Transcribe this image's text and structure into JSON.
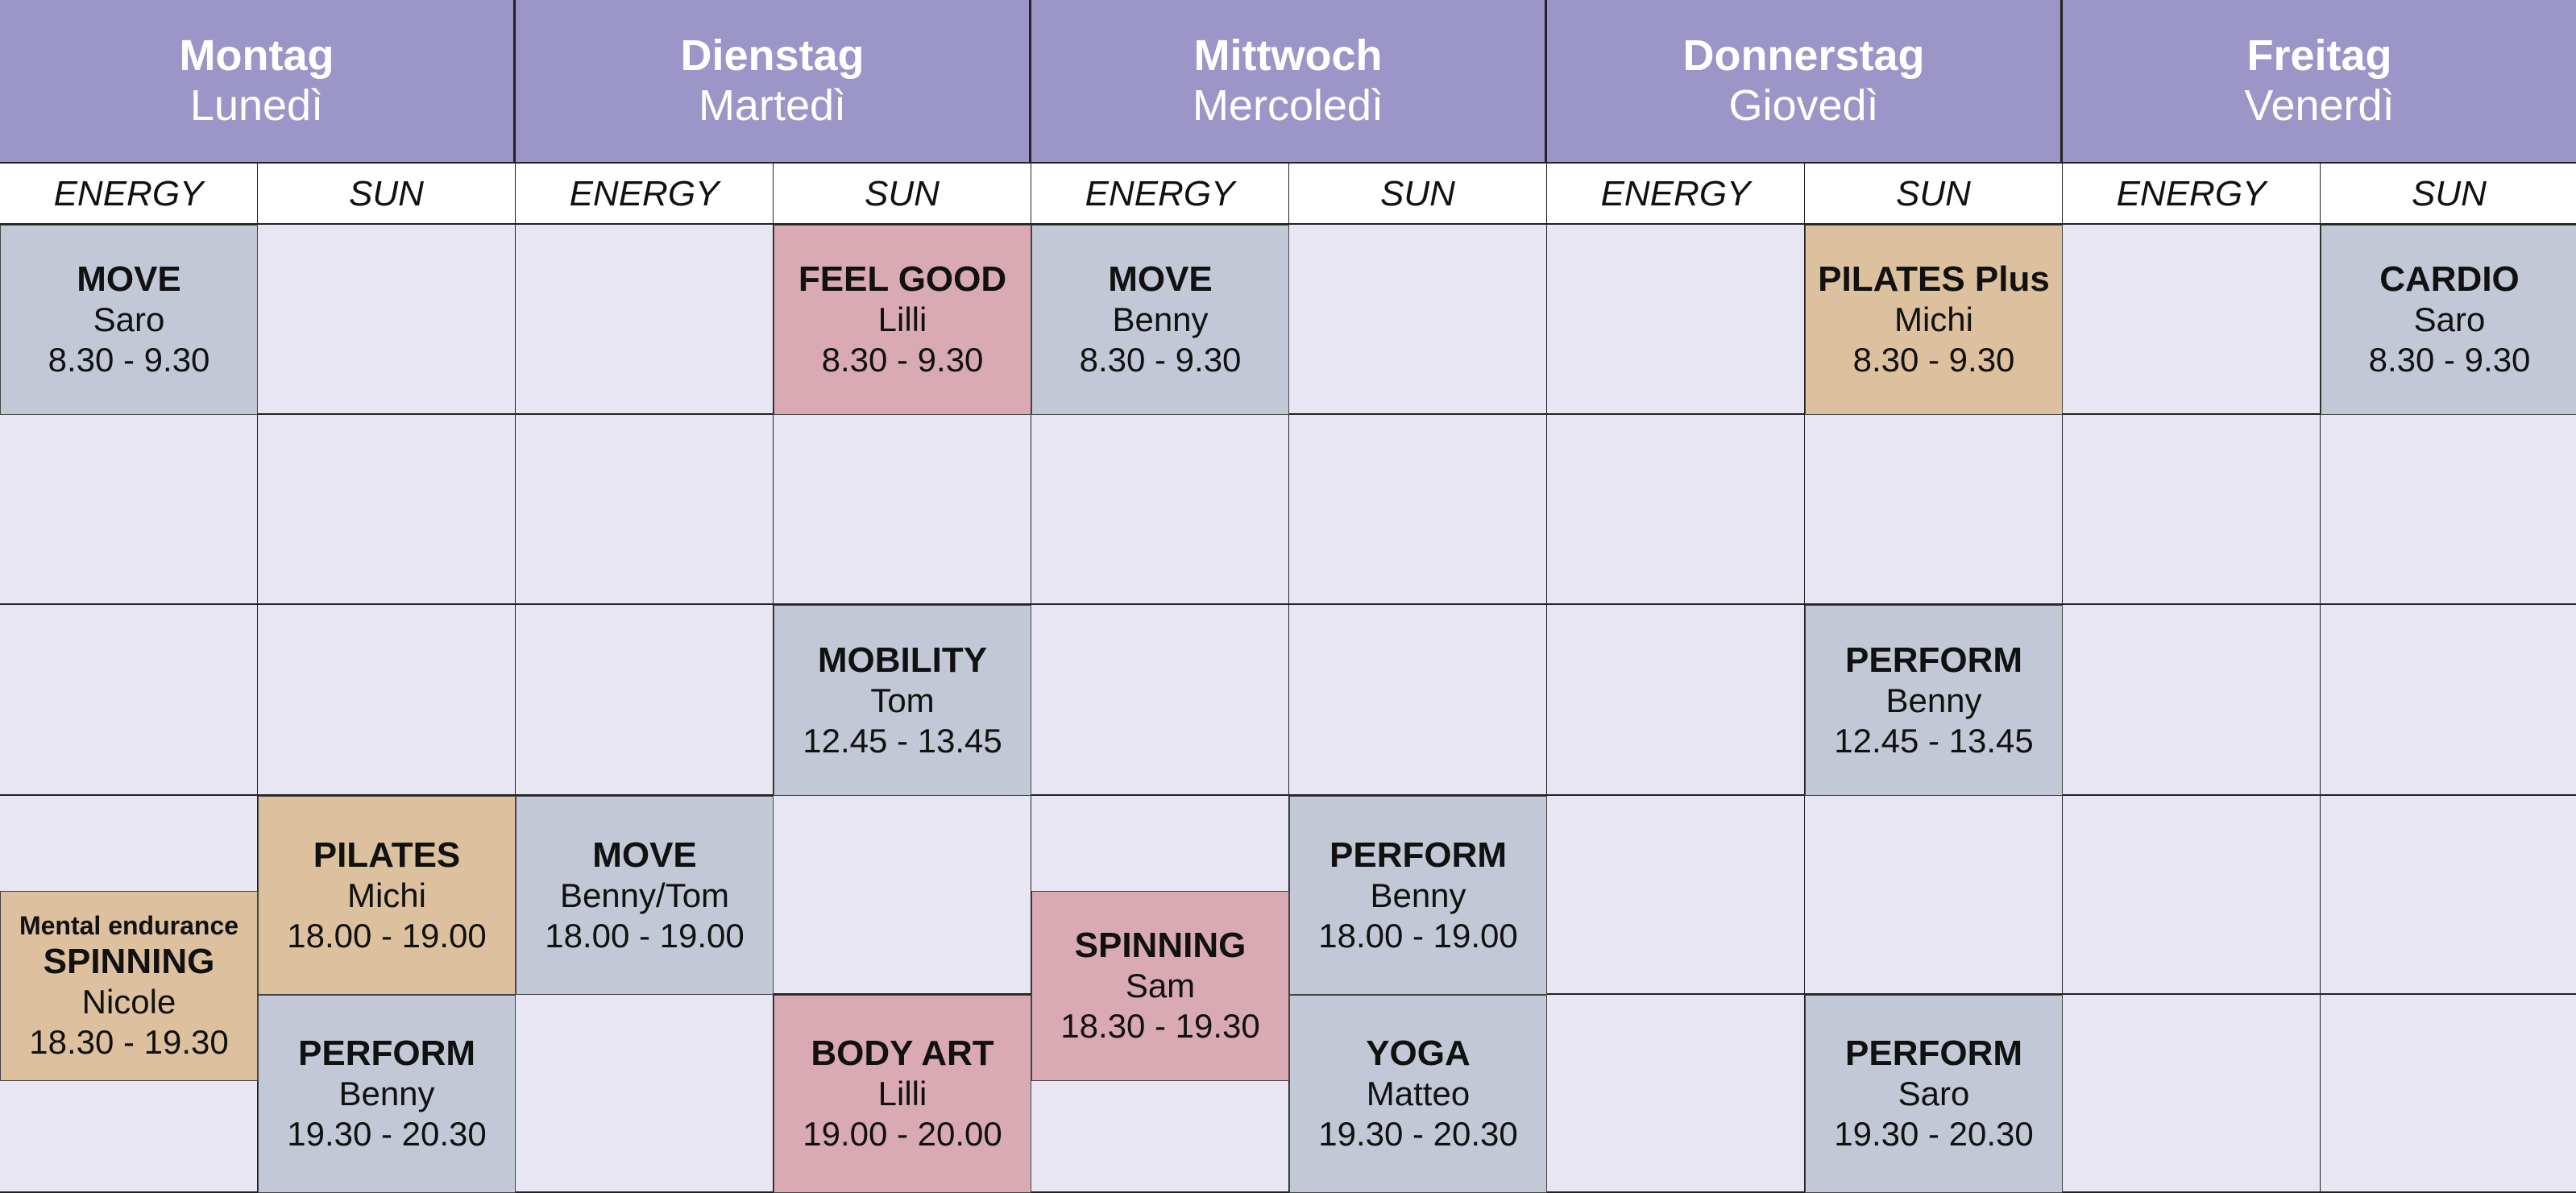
{
  "days": [
    {
      "de": "Montag",
      "it": "Lunedì"
    },
    {
      "de": "Dienstag",
      "it": "Martedì"
    },
    {
      "de": "Mittwoch",
      "it": "Mercoledì"
    },
    {
      "de": "Donnerstag",
      "it": "Giovedì"
    },
    {
      "de": "Freitag",
      "it": "Venerdì"
    }
  ],
  "rooms": [
    "ENERGY",
    "SUN"
  ],
  "colors": {
    "header": "#9b95c8",
    "grid_bg": "#e8e6f3",
    "blue": "#c2c8d6",
    "pink": "#d9aab4",
    "tan": "#ddc09e"
  },
  "events": [
    {
      "day": 0,
      "room": 0,
      "title": "MOVE",
      "instructor": "Saro",
      "time": "8.30 - 9.30",
      "color": "blue"
    },
    {
      "day": 1,
      "room": 1,
      "title": "FEEL GOOD",
      "instructor": "Lilli",
      "time": "8.30 - 9.30",
      "color": "pink"
    },
    {
      "day": 2,
      "room": 0,
      "title": "MOVE",
      "instructor": "Benny",
      "time": "8.30 - 9.30",
      "color": "blue"
    },
    {
      "day": 3,
      "room": 1,
      "title": "PILATES Plus",
      "instructor": "Michi",
      "time": "8.30 - 9.30",
      "color": "tan"
    },
    {
      "day": 4,
      "room": 1,
      "title": "CARDIO",
      "instructor": "Saro",
      "time": "8.30 - 9.30",
      "color": "blue"
    },
    {
      "day": 1,
      "room": 1,
      "title": "MOBILITY",
      "instructor": "Tom",
      "time": "12.45 - 13.45",
      "color": "blue"
    },
    {
      "day": 3,
      "room": 1,
      "title": "PERFORM",
      "instructor": "Benny",
      "time": "12.45 - 13.45",
      "color": "blue"
    },
    {
      "day": 0,
      "room": 1,
      "title": "PILATES",
      "instructor": "Michi",
      "time": "18.00 - 19.00",
      "color": "tan"
    },
    {
      "day": 1,
      "room": 0,
      "title": "MOVE",
      "instructor": "Benny/Tom",
      "time": "18.00 - 19.00",
      "color": "blue"
    },
    {
      "day": 2,
      "room": 1,
      "title": "PERFORM",
      "instructor": "Benny",
      "time": "18.00 - 19.00",
      "color": "blue"
    },
    {
      "day": 0,
      "room": 0,
      "tag": "Mental endurance",
      "title": "SPINNING",
      "instructor": "Nicole",
      "time": "18.30 - 19.30",
      "color": "tan"
    },
    {
      "day": 2,
      "room": 0,
      "title": "SPINNING",
      "instructor": "Sam",
      "time": "18.30 - 19.30",
      "color": "pink"
    },
    {
      "day": 0,
      "room": 1,
      "title": "PERFORM",
      "instructor": "Benny",
      "time": "19.30 - 20.30",
      "color": "blue"
    },
    {
      "day": 1,
      "room": 1,
      "title": "BODY ART",
      "instructor": "Lilli",
      "time": "19.00 - 20.00",
      "color": "pink"
    },
    {
      "day": 2,
      "room": 1,
      "title": "YOGA",
      "instructor": "Matteo",
      "time": "19.30 - 20.30",
      "color": "blue"
    },
    {
      "day": 3,
      "room": 1,
      "title": "PERFORM",
      "instructor": "Saro",
      "time": "19.30 - 20.30",
      "color": "blue"
    }
  ]
}
